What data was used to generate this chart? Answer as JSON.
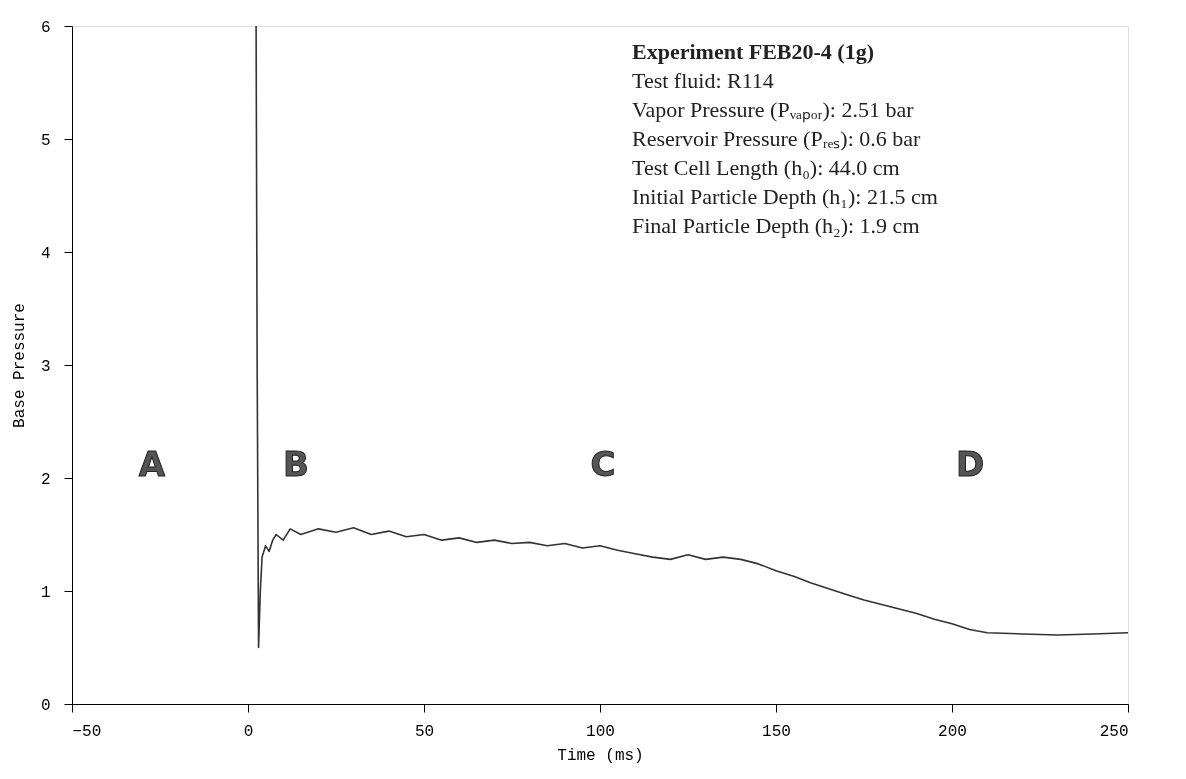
{
  "chart_data": {
    "type": "line",
    "xlabel": "Time (ms)",
    "ylabel": "Base Pressure",
    "xlim": [
      -50,
      250
    ],
    "xticks": [
      -50,
      0,
      50,
      100,
      150,
      200,
      250
    ],
    "ylim": [
      0,
      6
    ],
    "yticks": [
      0,
      1,
      2,
      3,
      4,
      5,
      6
    ],
    "grid": false,
    "marker": "none",
    "line_style": "solid",
    "series": [
      {
        "color": "#333333",
        "x": [
          2.3,
          2.6,
          3,
          3.5,
          4,
          5,
          6,
          7,
          8,
          10,
          12,
          15,
          20,
          25,
          30,
          35,
          40,
          45,
          50,
          55,
          60,
          65,
          70,
          75,
          80,
          85,
          90,
          95,
          100,
          105,
          110,
          115,
          120,
          125,
          130,
          135,
          140,
          145,
          150,
          155,
          160,
          165,
          170,
          175,
          180,
          185,
          190,
          195,
          200,
          205,
          210,
          220,
          230,
          240,
          250
        ],
        "values": [
          6.0,
          3.0,
          0.5,
          1.0,
          1.3,
          1.4,
          1.35,
          1.45,
          1.5,
          1.45,
          1.55,
          1.5,
          1.55,
          1.52,
          1.56,
          1.5,
          1.53,
          1.48,
          1.5,
          1.45,
          1.47,
          1.43,
          1.45,
          1.42,
          1.43,
          1.4,
          1.42,
          1.38,
          1.4,
          1.36,
          1.33,
          1.3,
          1.28,
          1.32,
          1.28,
          1.3,
          1.28,
          1.24,
          1.18,
          1.13,
          1.07,
          1.02,
          0.97,
          0.92,
          0.88,
          0.84,
          0.8,
          0.75,
          0.71,
          0.66,
          0.63,
          0.62,
          0.61,
          0.62,
          0.63
        ]
      }
    ],
    "annotations": [
      "Experiment  FEB20-4        (1g)",
      "Test fluid:  R114",
      "Vapor Pressure  (Pᵥₐₚₒᵣ):  2.51 bar",
      "Reservoir Pressure (Pᵣₑₛ):   0.6 bar",
      "Test Cell Length        (h₀):  44.0 cm",
      "Initial Particle Depth (h₁):  21.5 cm",
      "Final Particle Depth  (h₂):    1.9 cm",
      "A",
      "B",
      "C",
      "D"
    ]
  }
}
